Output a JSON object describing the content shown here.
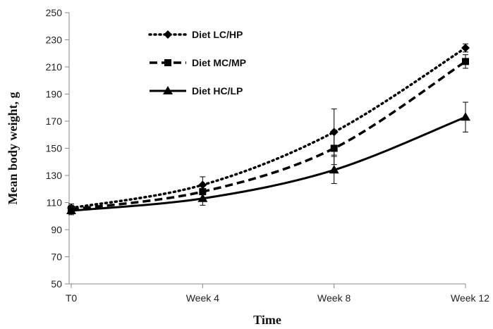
{
  "chart_data": {
    "type": "line",
    "xlabel": "Time",
    "ylabel": "Mean body weight, g",
    "categories": [
      "T0",
      "Week 4",
      "Week 8",
      "Week 12"
    ],
    "ylim": [
      50,
      250
    ],
    "yticks": [
      50,
      70,
      90,
      110,
      130,
      150,
      170,
      190,
      210,
      230,
      250
    ],
    "legend_position": "top-left",
    "grid": false,
    "series": [
      {
        "name": "Diet LC/HP",
        "values": [
          106,
          123,
          162,
          224
        ],
        "error": [
          3,
          6,
          17,
          3
        ],
        "line_style": "dotted",
        "marker": "diamond",
        "color": "#000000"
      },
      {
        "name": "Diet MC/MP",
        "values": [
          105,
          118,
          150,
          214
        ],
        "error": [
          3,
          5,
          12,
          5
        ],
        "line_style": "dashed",
        "marker": "square",
        "color": "#000000"
      },
      {
        "name": "Diet HC/LP",
        "values": [
          104,
          113,
          134,
          173
        ],
        "error": [
          3,
          5,
          10,
          11
        ],
        "line_style": "solid",
        "marker": "triangle",
        "color": "#000000"
      }
    ]
  }
}
